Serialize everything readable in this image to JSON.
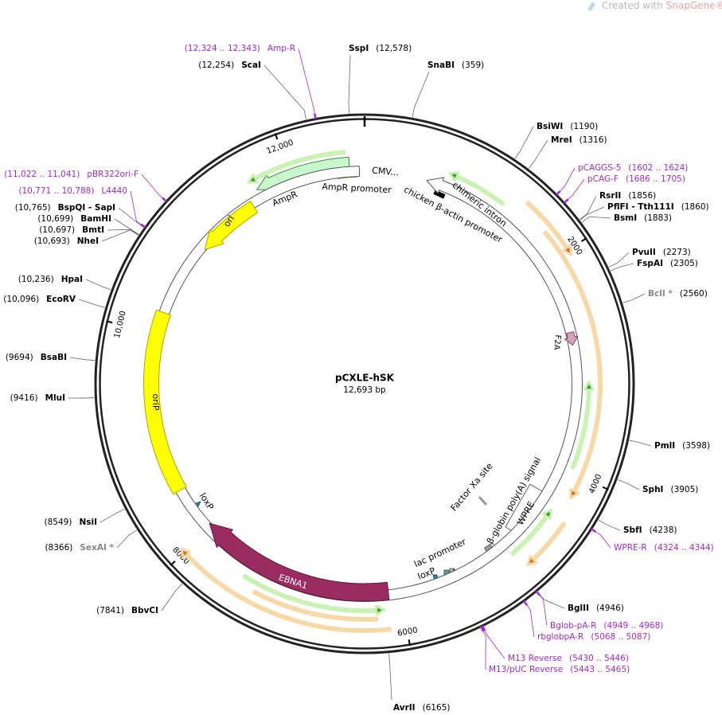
{
  "watermark": {
    "text": "Created with",
    "brand": "SnapGene®"
  },
  "plasmid": {
    "name": "pCXLE-hSK",
    "size": "12,693 bp",
    "ticks": [
      {
        "value": 12000,
        "label": "12,000"
      },
      2000,
      4000,
      6000,
      8000,
      {
        "value": 10000,
        "label": "10,000"
      }
    ]
  },
  "sites": [
    {
      "name": "ScaI",
      "position": "(12,254)"
    },
    {
      "name": "SspI",
      "position": "(12,578)"
    },
    {
      "name": "SnaBI",
      "position": "(359)"
    },
    {
      "name": "BsiWI",
      "position": "(1190)"
    },
    {
      "name": "MreI",
      "position": "(1316)"
    },
    {
      "name": "RsrII",
      "position": "(1856)"
    },
    {
      "name": "PflFI - Tth111I",
      "position": "(1860)"
    },
    {
      "name": "BsmI",
      "position": "(1883)"
    },
    {
      "name": "PvuII",
      "position": "(2273)"
    },
    {
      "name": "FspAI",
      "position": "(2305)"
    },
    {
      "name": "BclI *",
      "position": "(2560)",
      "color": "#888888"
    },
    {
      "name": "PmlI",
      "position": "(3598)"
    },
    {
      "name": "SphI",
      "position": "(3905)"
    },
    {
      "name": "SbfI",
      "position": "(4238)"
    },
    {
      "name": "BglII",
      "position": "(4946)"
    },
    {
      "name": "AvrII",
      "position": "(6165)"
    },
    {
      "name": "BbvCI",
      "position": "(7841)"
    },
    {
      "name": "SexAI *",
      "position": "(8366)",
      "color": "#888888"
    },
    {
      "name": "NsiI",
      "position": "(8549)"
    },
    {
      "name": "MluI",
      "position": "(9416)"
    },
    {
      "name": "BsaBI",
      "position": "(9694)"
    },
    {
      "name": "EcoRV",
      "position": "(10,096)"
    },
    {
      "name": "HpaI",
      "position": "(10,236)"
    },
    {
      "name": "NheI",
      "position": "(10,693)"
    },
    {
      "name": "BmtI",
      "position": "(10,697)"
    },
    {
      "name": "BamHI",
      "position": "(10,699)"
    },
    {
      "name": "BspQI - SapI",
      "position": "(10,765)"
    }
  ],
  "primers": [
    {
      "name": "Amp-R",
      "range": "(12,324 .. 12,343)"
    },
    {
      "name": "pCAGGS-5",
      "range": "(1602 .. 1624)"
    },
    {
      "name": "pCAG-F",
      "range": "(1686 .. 1705)"
    },
    {
      "name": "pBR322ori-F",
      "range": "(11,022 .. 11,041)"
    },
    {
      "name": "L4440",
      "range": "(10,771 .. 10,788)"
    },
    {
      "name": "WPRE-R",
      "range": "(4324 .. 4344)"
    },
    {
      "name": "Bglob-pA-R",
      "range": "(4949 .. 4968)"
    },
    {
      "name": "rbglobpA-R",
      "range": "(5068 .. 5087)"
    },
    {
      "name": "M13 Reverse",
      "range": "(5430 .. 5446)"
    },
    {
      "name": "M13/pUC Reverse",
      "range": "(5443 .. 5465)"
    }
  ],
  "features": [
    {
      "label": "CMV..."
    },
    {
      "label": "AmpR promoter"
    },
    {
      "label": "chicken β-actin promoter"
    },
    {
      "label": "chimeric intron"
    },
    {
      "label": "AmpR"
    },
    {
      "label": "ori"
    },
    {
      "label": "F2A"
    },
    {
      "label": "oriP"
    },
    {
      "label": "loxP"
    },
    {
      "label": "EBNA1"
    },
    {
      "label": "lac promoter"
    },
    {
      "label": "loxP"
    },
    {
      "label": "Factor Xa site"
    },
    {
      "label": "β-globin poly(A) signal"
    },
    {
      "label": "WPRE"
    }
  ]
}
